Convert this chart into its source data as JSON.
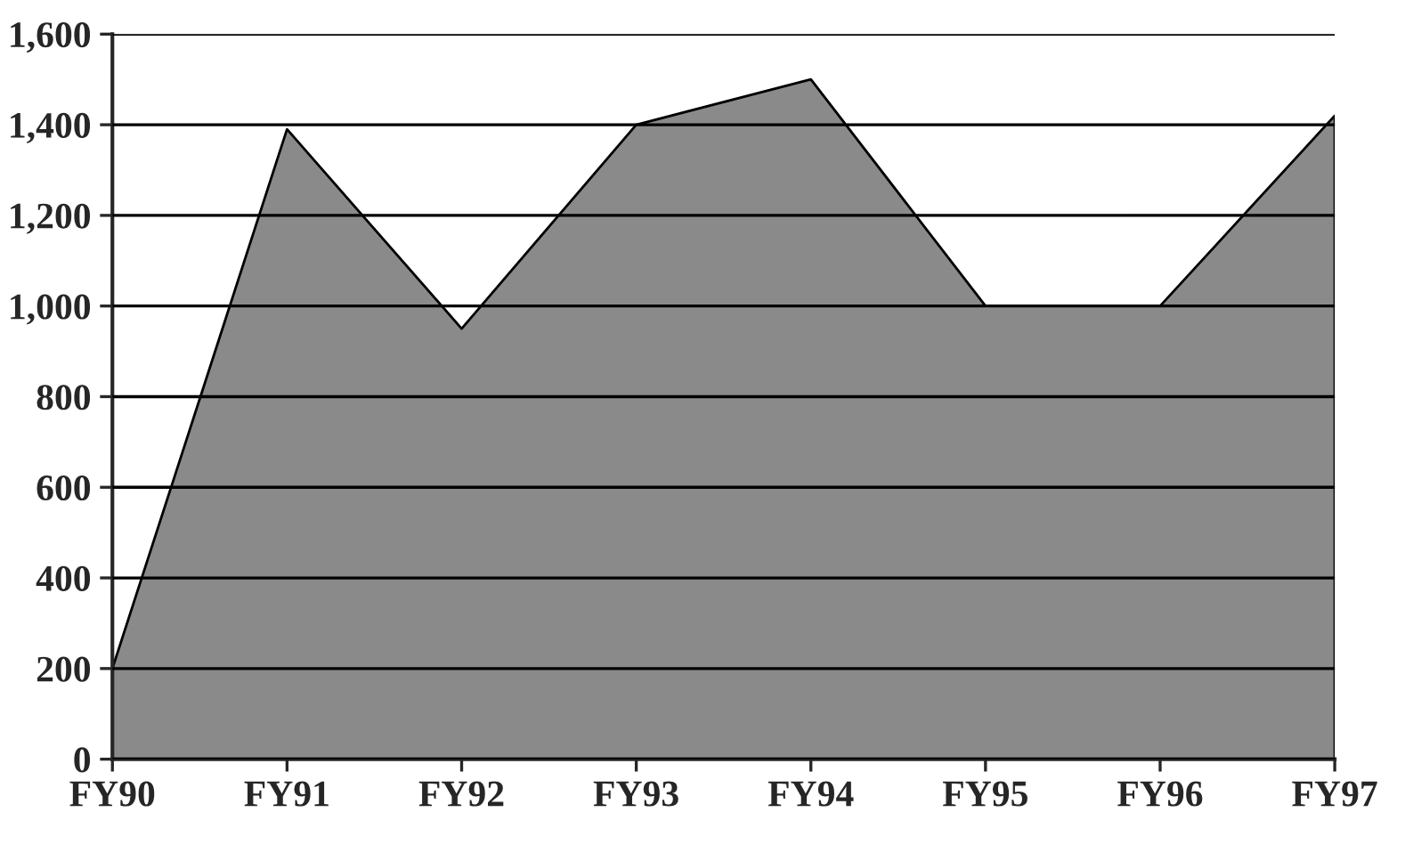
{
  "chart_data": {
    "type": "area",
    "categories": [
      "FY90",
      "FY91",
      "FY92",
      "FY93",
      "FY94",
      "FY95",
      "FY96",
      "FY97"
    ],
    "series": [
      {
        "color": "#8a8a8a",
        "values": [
          200,
          1390,
          950,
          1400,
          1500,
          1000,
          1000,
          1420
        ]
      }
    ],
    "ylim": [
      0,
      1600
    ],
    "yticks": [
      {
        "value": 0,
        "label": "0"
      },
      {
        "value": 200,
        "label": "200"
      },
      {
        "value": 400,
        "label": "400"
      },
      {
        "value": 600,
        "label": "600"
      },
      {
        "value": 800,
        "label": "800"
      },
      {
        "value": 1000,
        "label": "1,000"
      },
      {
        "value": 1200,
        "label": "1,200"
      },
      {
        "value": 1400,
        "label": "1,400"
      },
      {
        "value": 1600,
        "label": "1,600"
      }
    ],
    "grid": "y"
  }
}
